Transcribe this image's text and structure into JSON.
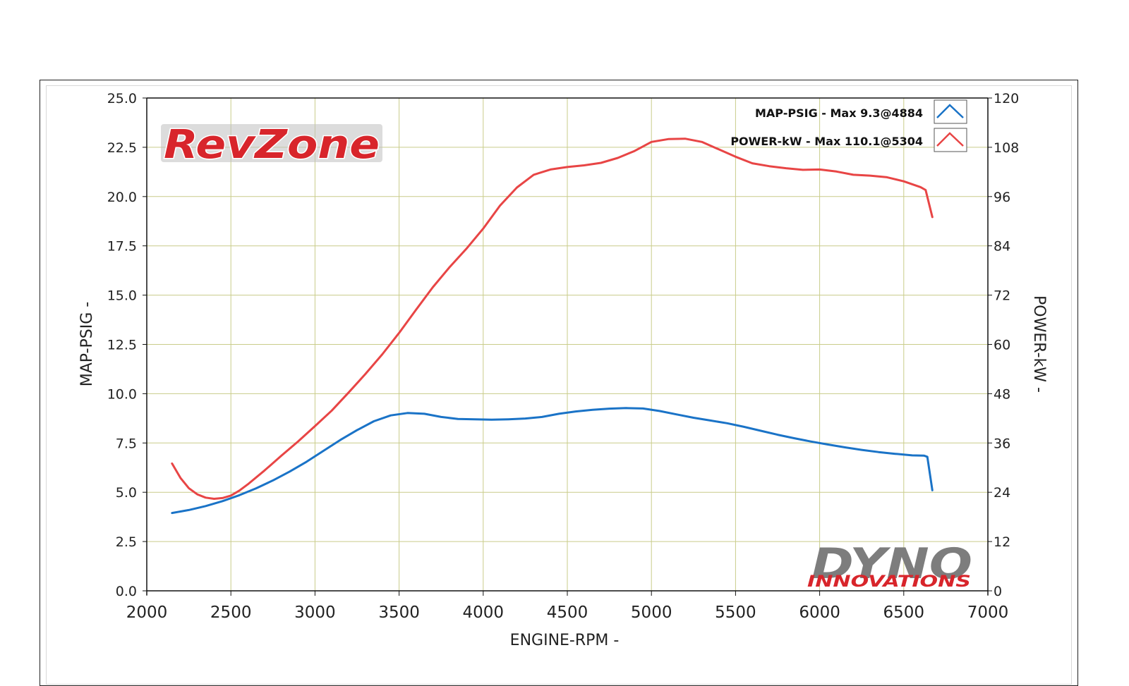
{
  "chart_data": {
    "type": "line",
    "xlabel": "ENGINE-RPM -",
    "ylabel": "MAP-PSIG -",
    "y2label": "POWER-kW -",
    "xlim": [
      2000,
      7000
    ],
    "ylim": [
      0,
      25
    ],
    "y2lim": [
      0,
      120
    ],
    "x_ticks": [
      "2000",
      "2500",
      "3000",
      "3500",
      "4000",
      "4500",
      "5000",
      "5500",
      "6000",
      "6500",
      "7000"
    ],
    "y_ticks": [
      "0.0",
      "2.5",
      "5.0",
      "7.5",
      "10.0",
      "12.5",
      "15.0",
      "17.5",
      "20.0",
      "22.5",
      "25.0"
    ],
    "y2_ticks": [
      "0",
      "12",
      "24",
      "36",
      "48",
      "60",
      "72",
      "84",
      "96",
      "108",
      "120"
    ],
    "grid": true,
    "legend_position": "top-right",
    "series": [
      {
        "name": "MAP-PSIG -",
        "legend_label": "MAP-PSIG -  Max 9.3@4884",
        "axis": "left",
        "color": "#1a73c7",
        "x": [
          2150,
          2250,
          2350,
          2450,
          2550,
          2650,
          2750,
          2850,
          2950,
          3050,
          3150,
          3250,
          3350,
          3450,
          3550,
          3650,
          3750,
          3850,
          3950,
          4050,
          4150,
          4250,
          4350,
          4450,
          4550,
          4650,
          4750,
          4850,
          4950,
          5050,
          5150,
          5250,
          5350,
          5450,
          5550,
          5650,
          5750,
          5850,
          5950,
          6050,
          6150,
          6250,
          6350,
          6450,
          6550,
          6620,
          6640,
          6670
        ],
        "y": [
          3.95,
          4.1,
          4.3,
          4.55,
          4.85,
          5.2,
          5.6,
          6.05,
          6.55,
          7.1,
          7.65,
          8.15,
          8.6,
          8.9,
          9.02,
          8.98,
          8.82,
          8.72,
          8.7,
          8.68,
          8.7,
          8.74,
          8.82,
          8.98,
          9.1,
          9.18,
          9.24,
          9.27,
          9.25,
          9.12,
          8.95,
          8.78,
          8.64,
          8.5,
          8.32,
          8.12,
          7.92,
          7.74,
          7.57,
          7.42,
          7.28,
          7.15,
          7.04,
          6.95,
          6.87,
          6.86,
          6.8,
          5.1
        ]
      },
      {
        "name": "POWER-kW -",
        "legend_label": "POWER-kW -  Max 110.1@5304",
        "axis": "right",
        "color": "#e84545",
        "x": [
          2150,
          2200,
          2250,
          2300,
          2350,
          2400,
          2450,
          2500,
          2550,
          2600,
          2700,
          2800,
          2900,
          3000,
          3100,
          3200,
          3300,
          3400,
          3500,
          3600,
          3700,
          3800,
          3900,
          4000,
          4100,
          4200,
          4300,
          4400,
          4500,
          4600,
          4700,
          4800,
          4900,
          5000,
          5100,
          5200,
          5300,
          5400,
          5500,
          5600,
          5700,
          5800,
          5900,
          6000,
          6100,
          6200,
          6300,
          6400,
          6500,
          6600,
          6630,
          6670
        ],
        "y": [
          31,
          27.5,
          25,
          23.5,
          22.7,
          22.4,
          22.6,
          23.2,
          24.4,
          25.9,
          29.3,
          32.9,
          36.4,
          40.1,
          43.9,
          48.3,
          52.8,
          57.6,
          62.8,
          68.4,
          73.9,
          78.8,
          83.3,
          88.2,
          93.8,
          98.2,
          101.3,
          102.6,
          103.2,
          103.6,
          104.2,
          105.4,
          107.1,
          109.3,
          110.0,
          110.1,
          109.3,
          107.5,
          105.7,
          104.1,
          103.4,
          102.9,
          102.5,
          102.6,
          102.1,
          101.3,
          101.1,
          100.7,
          99.7,
          98.3,
          97.6,
          91
        ]
      }
    ]
  },
  "logos": {
    "top_left": "RevZone",
    "bottom_right_main": "DYNO",
    "bottom_right_sub": "INNOVATIONS"
  }
}
